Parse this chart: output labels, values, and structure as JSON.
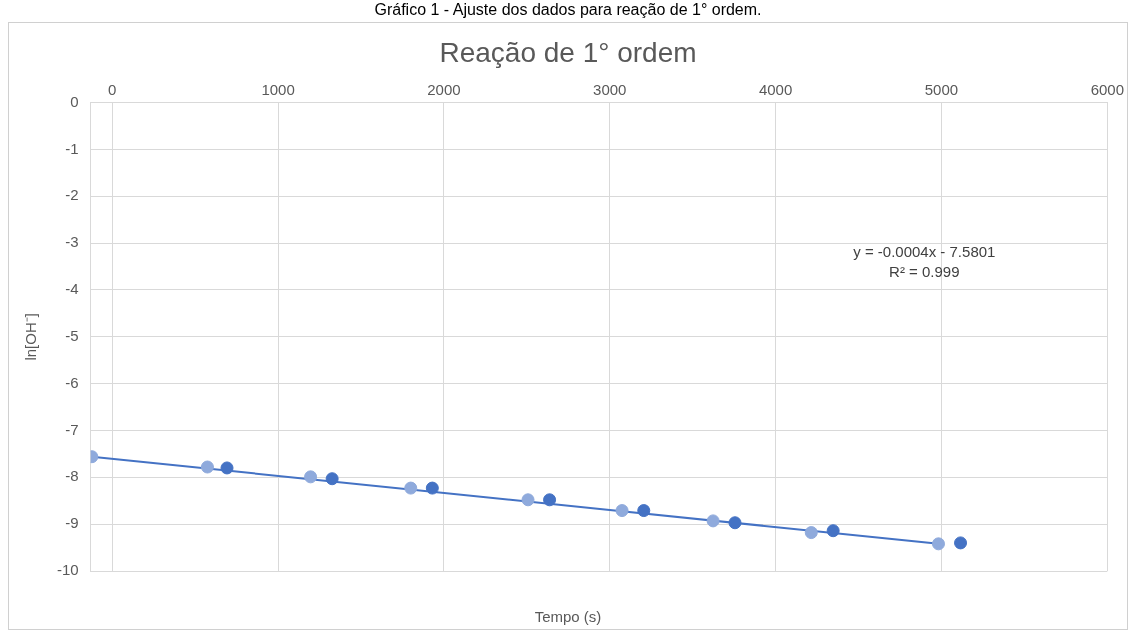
{
  "chart_data": {
    "type": "scatter",
    "title": "Reação de 1° ordem",
    "xlabel": "Tempo (s)",
    "ylabel": "ln[OH⁻]",
    "annotations": [
      "Gráfico 1 - Ajuste dos dados para reação de 1° ordem.",
      "y = -0.0004x - 7.5801",
      "R² = 0.999"
    ],
    "series": [
      {
        "color": "#8faadc",
        "x": [
          -123,
          574,
          1196,
          1800,
          2507,
          3074,
          3623,
          4215,
          4982
        ],
        "values": [
          -7.56,
          -7.78,
          -7.99,
          -8.23,
          -8.48,
          -8.71,
          -8.93,
          -9.18,
          -9.42
        ]
      },
      {
        "color": "#4472c4",
        "x": [
          692,
          1326,
          1930,
          2637,
          3205,
          3755,
          4347,
          5115
        ],
        "values": [
          -7.8,
          -8.03,
          -8.23,
          -8.48,
          -8.71,
          -8.97,
          -9.14,
          -9.4
        ]
      },
      {
        "type": "line",
        "marker": "none",
        "color": "#4472c4",
        "x": [
          -123,
          4982
        ],
        "values": [
          -7.56,
          -9.42
        ]
      }
    ],
    "xlim": [
      -130,
      6000
    ],
    "xticks": [
      0,
      1000,
      2000,
      3000,
      4000,
      5000,
      6000
    ],
    "ylim": [
      -10,
      0
    ],
    "yticks": [
      0,
      -1,
      -2,
      -3,
      -4,
      -5,
      -6,
      -7,
      -8,
      -9,
      -10
    ],
    "grid": true,
    "legend": false,
    "marker": "circle"
  }
}
